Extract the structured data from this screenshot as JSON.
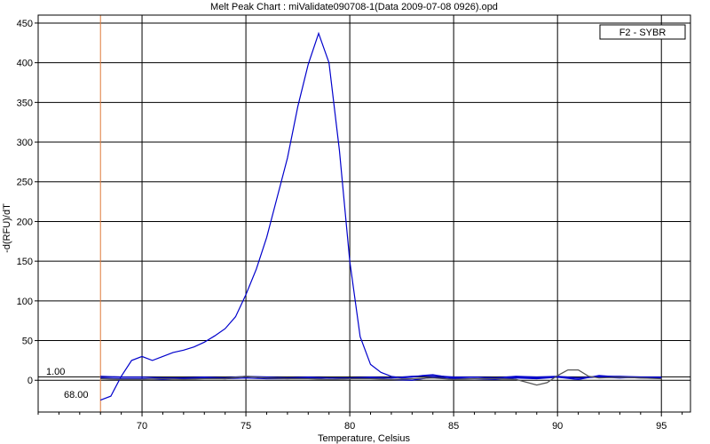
{
  "chart_data": {
    "type": "line",
    "title": "Melt Peak Chart : miValidate090708-1(Data 2009-07-08 0926).opd",
    "xlabel": "Temperature, Celsius",
    "ylabel": "-d(RFU)/dT",
    "xlim": [
      65,
      96.4
    ],
    "ylim": [
      -40,
      460
    ],
    "x_ticks": [
      70,
      75,
      80,
      85,
      90,
      95
    ],
    "y_ticks": [
      0,
      50,
      100,
      150,
      200,
      250,
      300,
      350,
      400,
      450
    ],
    "grid": true,
    "legend": {
      "placement": "top-right",
      "label": "F2 - SYBR"
    },
    "threshold": {
      "value": 1.0,
      "label": "1.00"
    },
    "begin_line": {
      "x": 68,
      "label": "68.00"
    },
    "series": [
      {
        "color": "#0000cc",
        "x": [
          68,
          68.5,
          69,
          69.5,
          70,
          70.5,
          71,
          71.5,
          72,
          72.5,
          73,
          73.5,
          74,
          74.5,
          75,
          75.5,
          76,
          76.5,
          77,
          77.5,
          78,
          78.5,
          79,
          79.5,
          80,
          80.5,
          81,
          81.5,
          82,
          82.5,
          83,
          83.5,
          84,
          84.5,
          85,
          86,
          87,
          88,
          89,
          90,
          91,
          92,
          93,
          94,
          95
        ],
        "y": [
          -25,
          -20,
          5,
          25,
          30,
          25,
          30,
          35,
          38,
          42,
          48,
          56,
          65,
          80,
          108,
          140,
          180,
          230,
          280,
          345,
          398,
          437,
          400,
          290,
          150,
          55,
          20,
          10,
          5,
          3,
          4,
          6,
          7,
          5,
          3,
          4,
          3,
          4,
          3,
          4,
          3,
          4,
          3,
          4,
          3
        ]
      },
      {
        "color": "#0000cc",
        "x": [
          68,
          69,
          70,
          71,
          72,
          73,
          74,
          75,
          76,
          77,
          78,
          79,
          80,
          81,
          82,
          83,
          84,
          85,
          86,
          87,
          88,
          89,
          90,
          91,
          92,
          93,
          94,
          95
        ],
        "y": [
          5,
          4,
          4,
          3,
          3,
          4,
          3,
          5,
          4,
          3,
          4,
          3,
          3,
          4,
          3,
          5,
          6,
          4,
          4,
          3,
          5,
          4,
          5,
          3,
          5,
          5,
          4,
          4
        ]
      },
      {
        "color": "#0000cc",
        "x": [
          68,
          69,
          70,
          71,
          72,
          73,
          74,
          75,
          76,
          77,
          78,
          79,
          80,
          81,
          82,
          83,
          84,
          85,
          86,
          87,
          88,
          89,
          90,
          91,
          92,
          93,
          94,
          95
        ],
        "y": [
          3,
          2,
          2,
          1,
          2,
          3,
          2,
          3,
          2,
          2,
          3,
          1,
          2,
          3,
          1,
          0,
          4,
          2,
          2,
          1,
          3,
          2,
          4,
          1,
          6,
          4,
          3,
          3
        ]
      },
      {
        "color": "#555555",
        "x": [
          68,
          69,
          70,
          71,
          72,
          73,
          74,
          75,
          76,
          77,
          78,
          79,
          80,
          81,
          82,
          83,
          84,
          85,
          86,
          87,
          88,
          89,
          89.5,
          90,
          90.5,
          91,
          91.5,
          92,
          93,
          94,
          95
        ],
        "y": [
          2,
          1,
          1,
          2,
          1,
          2,
          2,
          5,
          3,
          2,
          2,
          1,
          2,
          2,
          1,
          2,
          3,
          1,
          2,
          2,
          1,
          -6,
          -3,
          6,
          13,
          13,
          5,
          3,
          4,
          3,
          2
        ]
      }
    ]
  }
}
